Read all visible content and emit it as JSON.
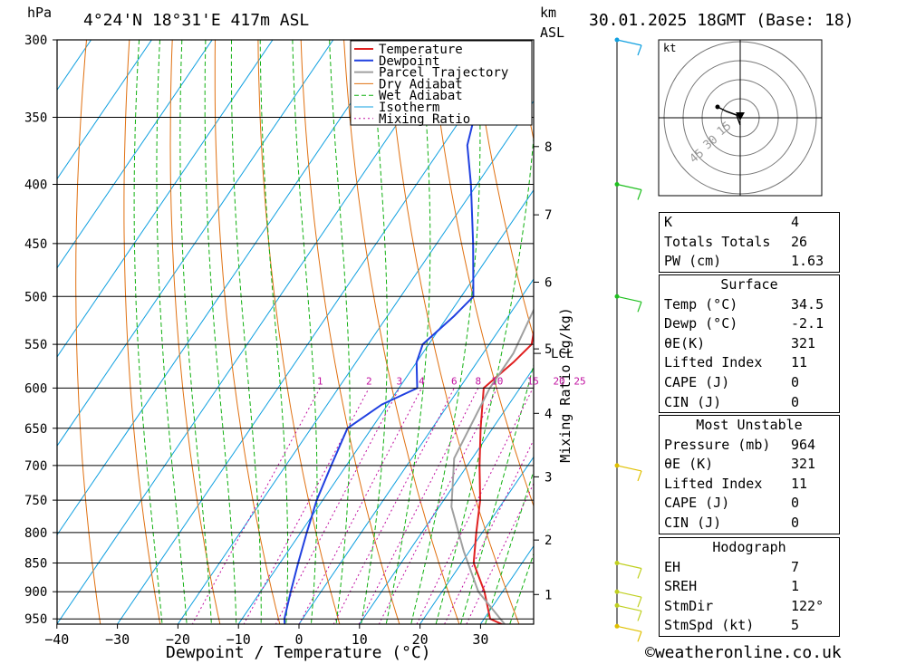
{
  "header": {
    "unit_hpa": "hPa",
    "location": "4°24'N  18°31'E  417m  ASL",
    "unit_km": "km",
    "unit_asl": "ASL",
    "datetime": "30.01.2025  18GMT  (Base: 18)"
  },
  "chart_data": {
    "type": "line",
    "title": "4°24'N  18°31'E  417m  ASL",
    "xlabel": "Dewpoint / Temperature (°C)",
    "ylabel": "hPa",
    "y2label": "Mixing Ratio (g/kg)",
    "x_ticks": [
      -40,
      -30,
      -20,
      -10,
      0,
      10,
      20,
      30
    ],
    "pressure_ticks": [
      300,
      350,
      400,
      450,
      500,
      550,
      600,
      650,
      700,
      750,
      800,
      850,
      900,
      950
    ],
    "pressure_range": [
      300,
      960
    ],
    "km_ticks": [
      {
        "label": "8",
        "p": 371
      },
      {
        "label": "7",
        "p": 425
      },
      {
        "label": "6",
        "p": 486
      },
      {
        "label": "5",
        "p": 555
      },
      {
        "label": "4",
        "p": 631
      },
      {
        "label": "3",
        "p": 716
      },
      {
        "label": "2",
        "p": 812
      },
      {
        "label": "1",
        "p": 905
      }
    ],
    "lcl": {
      "label": "LCL",
      "p": 560
    },
    "mixing_ratio_labels": [
      "1",
      "2",
      "3",
      "4",
      "6",
      "8",
      "10",
      "15",
      "20",
      "25"
    ],
    "legend": [
      "Temperature",
      "Dewpoint",
      "Parcel Trajectory",
      "Dry Adiabat",
      "Wet Adiabat",
      "Isotherm",
      "Mixing Ratio"
    ],
    "legend_position": "top-center",
    "colors": {
      "temperature": "#e02020",
      "dewpoint": "#2040e0",
      "parcel": "#a0a0a0",
      "dry_adiabat": "#e07010",
      "wet_adiabat": "#10b010",
      "isotherm": "#10a0e0",
      "mixing_ratio": "#c010a0"
    },
    "series": [
      {
        "name": "Temperature",
        "points": [
          [
            34.5,
            964
          ],
          [
            31,
            950
          ],
          [
            27,
            900
          ],
          [
            22,
            850
          ],
          [
            19,
            800
          ],
          [
            16,
            750
          ],
          [
            12,
            700
          ],
          [
            8,
            650
          ],
          [
            4,
            600
          ],
          [
            6,
            570
          ],
          [
            7,
            550
          ],
          [
            3,
            500
          ],
          [
            -2,
            450
          ],
          [
            -7,
            400
          ],
          [
            -12,
            350
          ],
          [
            -19,
            300
          ]
        ]
      },
      {
        "name": "Dewpoint",
        "points": [
          [
            -2.1,
            964
          ],
          [
            -3,
            950
          ],
          [
            -5,
            900
          ],
          [
            -7,
            850
          ],
          [
            -9,
            800
          ],
          [
            -11,
            750
          ],
          [
            -12.5,
            700
          ],
          [
            -14,
            650
          ],
          [
            -11,
            620
          ],
          [
            -7,
            600
          ],
          [
            -10,
            570
          ],
          [
            -11,
            550
          ],
          [
            -9,
            520
          ],
          [
            -8,
            500
          ],
          [
            -14,
            450
          ],
          [
            -21,
            400
          ],
          [
            -26,
            370
          ],
          [
            -28,
            350
          ],
          [
            -30,
            300
          ]
        ]
      },
      {
        "name": "Parcel Trajectory",
        "points": [
          [
            34.5,
            964
          ],
          [
            26,
            900
          ],
          [
            19,
            830
          ],
          [
            12,
            760
          ],
          [
            7,
            690
          ],
          [
            5,
            600
          ],
          [
            5,
            560
          ],
          [
            3,
            500
          ],
          [
            -2,
            450
          ],
          [
            -8,
            400
          ],
          [
            -15,
            350
          ],
          [
            -23,
            310
          ]
        ]
      }
    ],
    "mixing_ratio_values": [
      1,
      2,
      3,
      4,
      6,
      8,
      10,
      15,
      20,
      25
    ]
  },
  "wind_profile": {
    "barbs": [
      {
        "p": 300,
        "color": "#10a0e0"
      },
      {
        "p": 400,
        "color": "#20c020"
      },
      {
        "p": 500,
        "color": "#20c020"
      },
      {
        "p": 700,
        "color": "#e0c000"
      },
      {
        "p": 850,
        "color": "#c0d020"
      },
      {
        "p": 900,
        "color": "#c0d020"
      },
      {
        "p": 925,
        "color": "#c0d020"
      },
      {
        "p": 964,
        "color": "#e0c000"
      }
    ]
  },
  "hodograph": {
    "unit": "kt",
    "ring_labels": [
      "15",
      "30",
      "45"
    ]
  },
  "indices": {
    "k_label": "K",
    "k_value": "4",
    "tt_label": "Totals Totals",
    "tt_value": "26",
    "pw_label": "PW (cm)",
    "pw_value": "1.63"
  },
  "surface": {
    "title": "Surface",
    "temp_label": "Temp (°C)",
    "temp_value": "34.5",
    "dewp_label": "Dewp (°C)",
    "dewp_value": "-2.1",
    "theta_label": "θE(K)",
    "theta_value": "321",
    "li_label": "Lifted Index",
    "li_value": "11",
    "cape_label": "CAPE (J)",
    "cape_value": "0",
    "cin_label": "CIN (J)",
    "cin_value": "0"
  },
  "most_unstable": {
    "title": "Most Unstable",
    "pressure_label": "Pressure (mb)",
    "pressure_value": "964",
    "theta_label": "θE (K)",
    "theta_value": "321",
    "li_label": "Lifted Index",
    "li_value": "11",
    "cape_label": "CAPE (J)",
    "cape_value": "0",
    "cin_label": "CIN (J)",
    "cin_value": "0"
  },
  "hodo_params": {
    "title": "Hodograph",
    "eh_label": "EH",
    "eh_value": "7",
    "sreh_label": "SREH",
    "sreh_value": "1",
    "stmdir_label": "StmDir",
    "stmdir_value": "122°",
    "stmspd_label": "StmSpd (kt)",
    "stmspd_value": "5"
  },
  "footer": {
    "copyright": "©weatheronline.co.uk"
  }
}
